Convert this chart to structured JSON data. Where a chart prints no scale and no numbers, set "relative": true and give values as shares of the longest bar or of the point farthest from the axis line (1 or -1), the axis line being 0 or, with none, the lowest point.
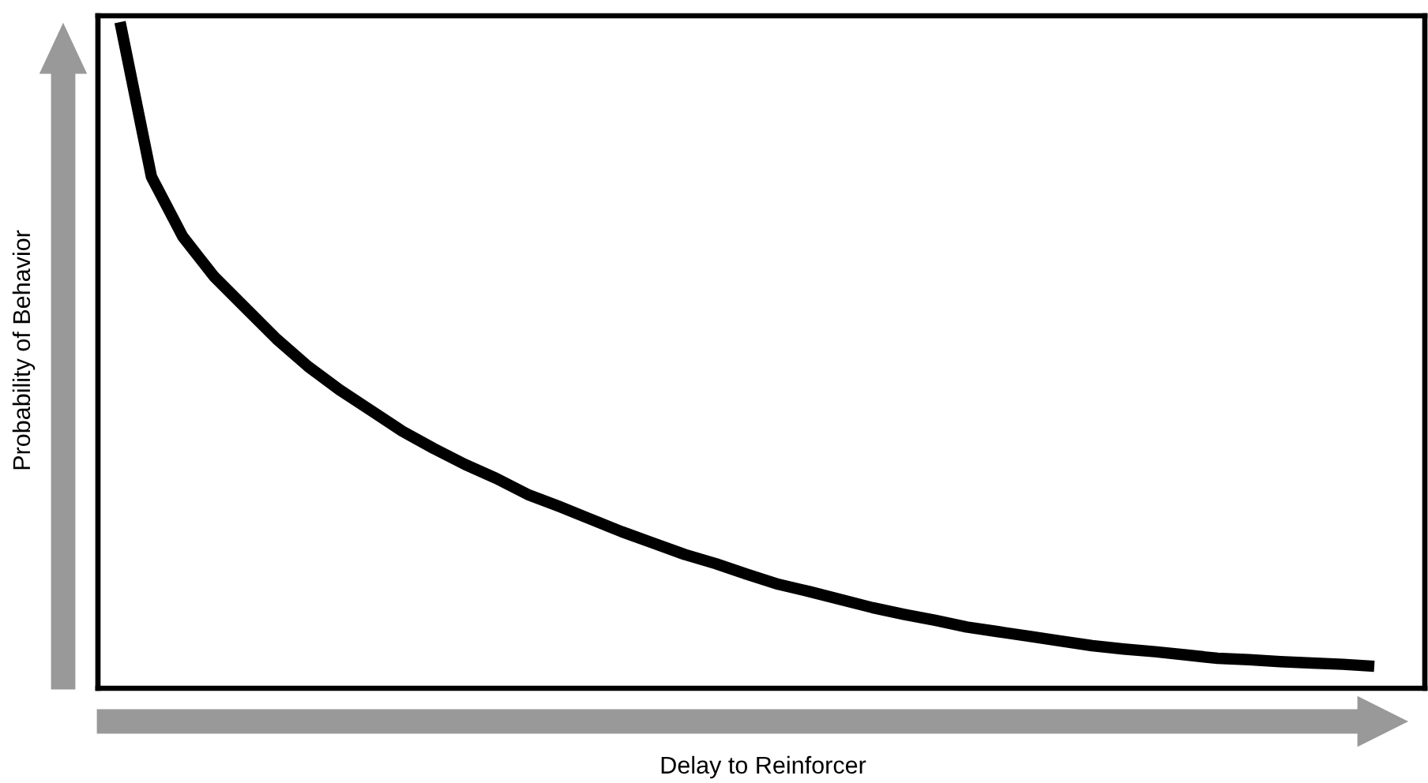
{
  "chart_data": {
    "type": "line",
    "relative": true,
    "xlabel": "Delay to Reinforcer",
    "ylabel": "Probability of Behavior",
    "categories": [
      null,
      null,
      null,
      null,
      null,
      null,
      null,
      null,
      null,
      null,
      null,
      null,
      null,
      null,
      null,
      null,
      null,
      null,
      null,
      null,
      null,
      null,
      null,
      null,
      null,
      null,
      null,
      null,
      null,
      null,
      null,
      null,
      null,
      null,
      null,
      null,
      null,
      null,
      null,
      null,
      null
    ],
    "series": [
      {
        "color": "#000000",
        "values": [
          1.0,
          0.768,
          0.678,
          0.618,
          0.571,
          0.524,
          0.483,
          0.448,
          0.417,
          0.386,
          0.36,
          0.336,
          0.315,
          0.291,
          0.273,
          0.254,
          0.235,
          0.218,
          0.201,
          0.187,
          0.171,
          0.156,
          0.145,
          0.133,
          0.121,
          0.111,
          0.102,
          0.092,
          0.085,
          0.078,
          0.071,
          0.064,
          0.059,
          0.055,
          0.05,
          0.045,
          0.043,
          0.04,
          0.038,
          0.036,
          0.033
        ]
      }
    ],
    "legend": false
  }
}
